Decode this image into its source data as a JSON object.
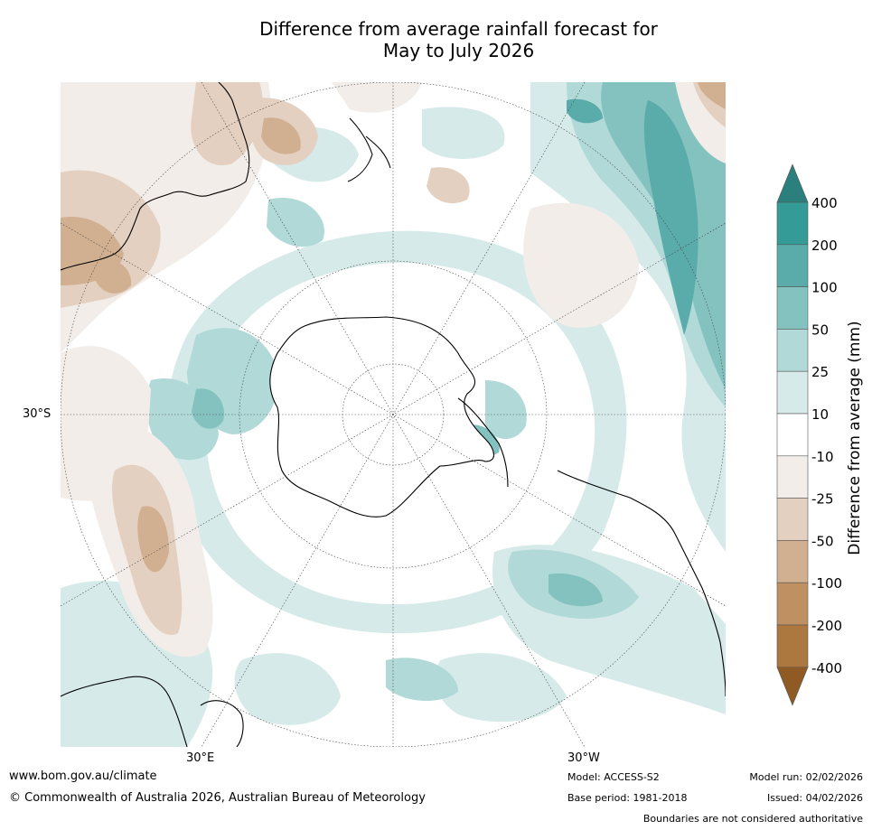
{
  "title": {
    "line1": "Difference from average rainfall forecast for",
    "line2": "May to July 2026"
  },
  "map": {
    "projection": "south-polar-stereographic",
    "lat_label": "30°S",
    "lon_labels": [
      "30°E",
      "30°W"
    ]
  },
  "colorbar": {
    "label": "Difference from average (mm)",
    "tick_labels": [
      "400",
      "200",
      "100",
      "50",
      "25",
      "10",
      "-10",
      "-25",
      "-50",
      "-100",
      "-200",
      "-400"
    ],
    "colors": [
      "#2b7f7d",
      "#349b97",
      "#5aacaa",
      "#84c2c0",
      "#b0d9d7",
      "#d6eae9",
      "#ffffff",
      "#f2ede8",
      "#e4d0c0",
      "#d1b091",
      "#bf9162",
      "#ad7740",
      "#8f5a24"
    ]
  },
  "footer": {
    "website": "www.bom.gov.au/climate",
    "copyright": "© Commonwealth of Australia 2026, Australian Bureau of Meteorology",
    "model": "Model: ACCESS-S2",
    "base_period": "Base period: 1981-2018",
    "model_run": "Model run: 02/02/2026",
    "issued": "Issued: 04/02/2026",
    "disclaimer": "Boundaries are not considered authoritative"
  }
}
